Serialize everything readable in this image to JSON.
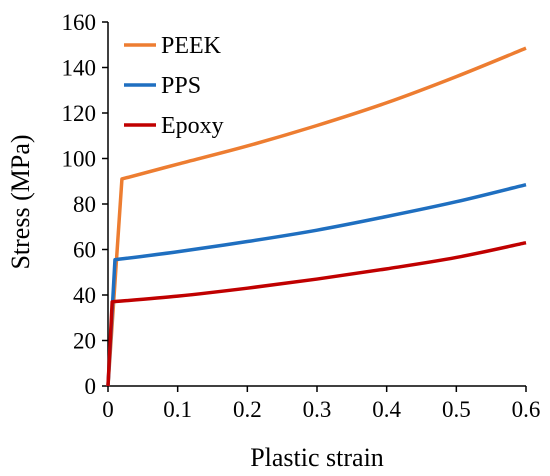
{
  "chart_data": {
    "type": "line",
    "title": "",
    "xlabel": "Plastic strain",
    "ylabel": "Stress (MPa)",
    "xlim": [
      0,
      0.6
    ],
    "ylim": [
      0,
      160
    ],
    "xticks": [
      0,
      0.1,
      0.2,
      0.3,
      0.4,
      0.5,
      0.6
    ],
    "xtick_labels": [
      "0",
      "0.1",
      "0.2",
      "0.3",
      "0.4",
      "0.5",
      "0.6"
    ],
    "yticks": [
      0,
      20,
      40,
      60,
      80,
      100,
      120,
      140,
      160
    ],
    "ytick_labels": [
      "0",
      "20",
      "40",
      "60",
      "80",
      "100",
      "120",
      "140",
      "160"
    ],
    "grid": false,
    "legend": "top-left",
    "series": [
      {
        "name": "PEEK",
        "color": "#ED7D31",
        "x": [
          0,
          0.02,
          0.1,
          0.2,
          0.3,
          0.4,
          0.5,
          0.6
        ],
        "y": [
          0,
          91,
          97.5,
          105.5,
          114.5,
          124.5,
          136,
          148.5
        ]
      },
      {
        "name": "PPS",
        "color": "#1F6FC0",
        "x": [
          0,
          0.01,
          0.1,
          0.2,
          0.3,
          0.4,
          0.5,
          0.6
        ],
        "y": [
          0,
          55.5,
          59,
          63.5,
          68.5,
          74.5,
          81,
          88.5
        ]
      },
      {
        "name": "Epoxy",
        "color": "#C00000",
        "x": [
          0,
          0.006,
          0.1,
          0.2,
          0.3,
          0.4,
          0.5,
          0.6
        ],
        "y": [
          0,
          37,
          39.5,
          43,
          47,
          51.5,
          56.5,
          63
        ]
      }
    ]
  }
}
